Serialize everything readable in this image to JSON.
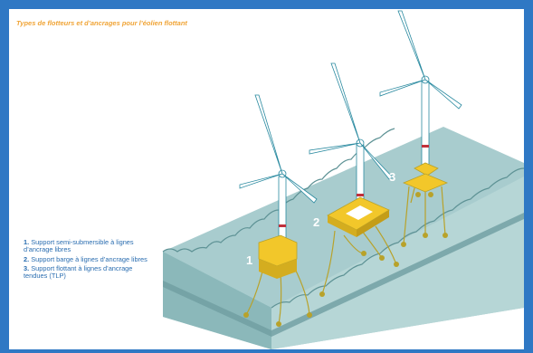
{
  "title": "Types de flotteurs et d’ancrages pour l’éolien flottant",
  "legend": [
    {
      "num": "1.",
      "text": "Support semi-submersible à lignes d’ancrage libres"
    },
    {
      "num": "2.",
      "text": "Support barge à lignes d’ancrage libres"
    },
    {
      "num": "3.",
      "text": "Support flottant à lignes d’ancrage tendues (TLP)"
    }
  ],
  "callouts": [
    "1",
    "2",
    "3"
  ],
  "colors": {
    "frame": "#2f78c4",
    "title": "#f0a436",
    "legend_text": "#2a6db0",
    "water": "#a7cccd",
    "water_dark": "#7fb0b2",
    "float_yellow": "#f2c72a",
    "anchor_olive": "#b8a22a",
    "turbine_outline": "#2a8aa0"
  }
}
